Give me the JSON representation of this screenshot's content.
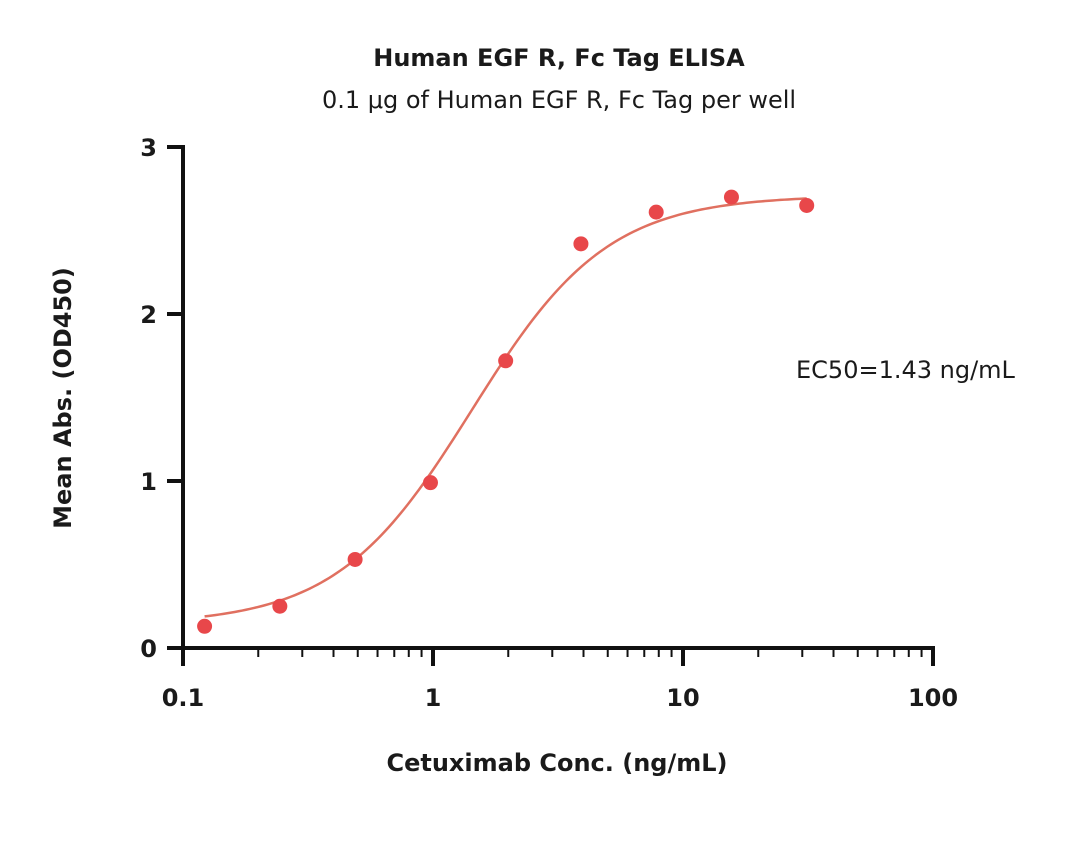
{
  "chart_data": {
    "type": "scatter",
    "title": "Human EGF R, Fc Tag ELISA",
    "subtitle": "0.1 μg of Human EGF R, Fc Tag per well",
    "xlabel": "Cetuximab Conc. (ng/mL)",
    "ylabel": "Mean Abs. (OD450)",
    "xscale": "log",
    "xlim": [
      0.1,
      100
    ],
    "ylim": [
      0,
      3
    ],
    "x_ticks": [
      "0.1",
      "1",
      "10",
      "100"
    ],
    "y_ticks": [
      "0",
      "1",
      "2",
      "3"
    ],
    "grid": false,
    "legend": "none",
    "series": [
      {
        "color": "#e8474a",
        "x": [
          0.122,
          0.244,
          0.488,
          0.977,
          1.953,
          3.906,
          7.813,
          15.625,
          31.25
        ],
        "y": [
          0.13,
          0.25,
          0.53,
          0.99,
          1.72,
          2.42,
          2.61,
          2.7,
          2.65
        ]
      }
    ],
    "fit": {
      "type": "4PL",
      "color": "#e07060",
      "bottom": 0.14,
      "top": 2.71,
      "ec50": 1.43,
      "hill": 1.6,
      "x_range": [
        0.122,
        31.25
      ]
    },
    "annotations": [
      {
        "text": "EC50=1.43 ng/mL"
      }
    ]
  }
}
